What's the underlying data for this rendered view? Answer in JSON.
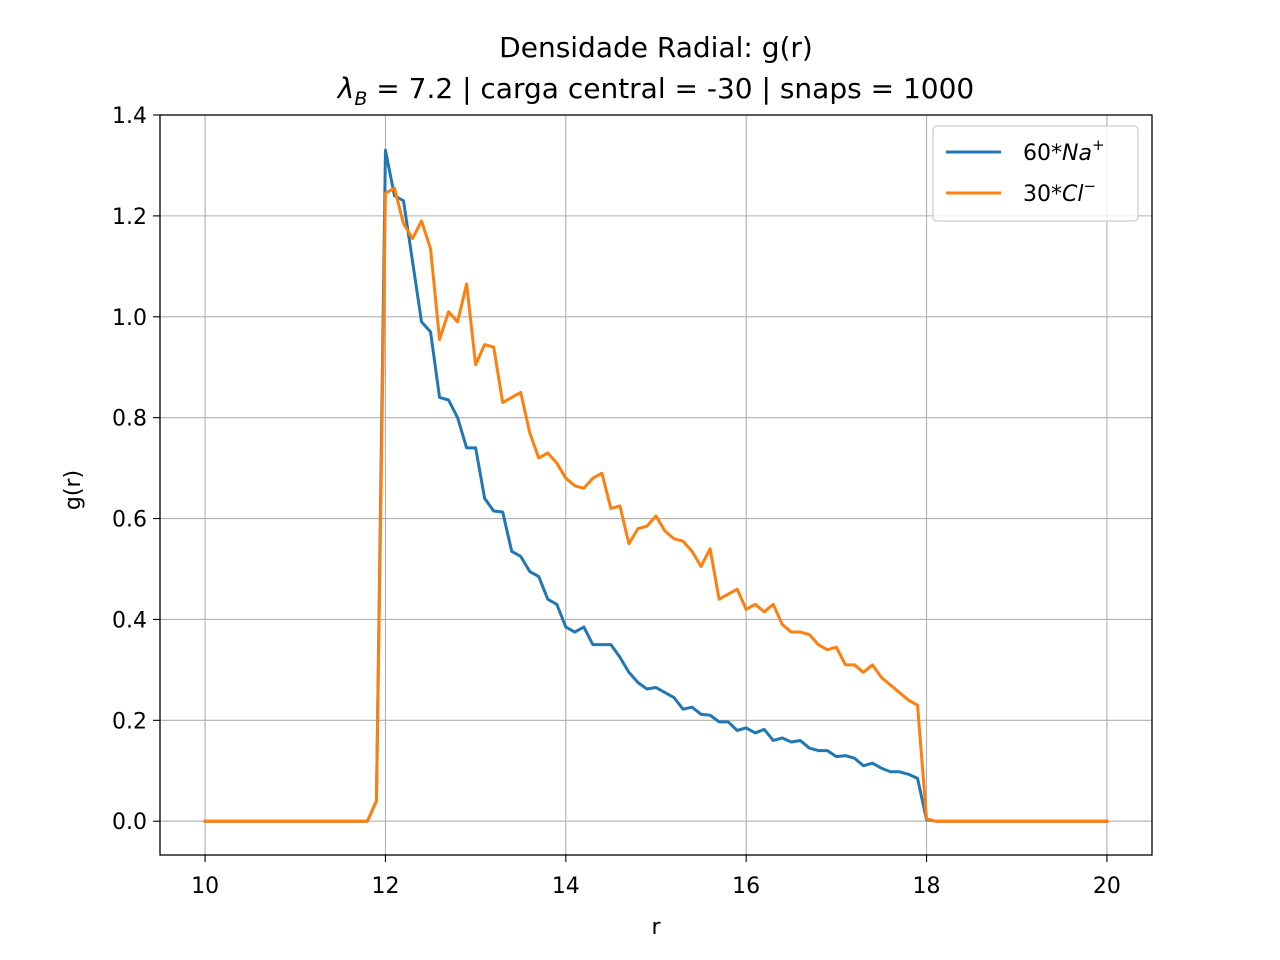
{
  "chart_data": {
    "type": "line",
    "title": "Densidade Radial: g(r)",
    "subtitle": {
      "lambda_symbol": "λ",
      "lambda_sub": "B",
      "lambda_rest": " = 7.2 | carga central = -30 | snaps = 1000"
    },
    "xlabel": "r",
    "ylabel": "g(r)",
    "xlim": [
      9.5,
      20.5
    ],
    "ylim": [
      -0.067,
      1.4
    ],
    "xticks": [
      10,
      12,
      14,
      16,
      18,
      20
    ],
    "xtick_labels": [
      "10",
      "12",
      "14",
      "16",
      "18",
      "20"
    ],
    "yticks": [
      0.0,
      0.2,
      0.4,
      0.6,
      0.8,
      1.0,
      1.2,
      1.4
    ],
    "ytick_labels": [
      "0.0",
      "0.2",
      "0.4",
      "0.6",
      "0.8",
      "1.0",
      "1.2",
      "1.4"
    ],
    "grid": true,
    "legend_position": "top-right",
    "series": [
      {
        "name": "60*Na+",
        "legend_prefix": "60*",
        "legend_ion": "Na",
        "legend_sup": "+",
        "color": "#1f77b4",
        "x": [
          10.0,
          11.8,
          11.9,
          12.0,
          12.1,
          12.2,
          12.3,
          12.4,
          12.5,
          12.6,
          12.7,
          12.8,
          12.9,
          13.0,
          13.1,
          13.2,
          13.3,
          13.4,
          13.5,
          13.6,
          13.7,
          13.8,
          13.9,
          14.0,
          14.1,
          14.2,
          14.3,
          14.4,
          14.5,
          14.6,
          14.7,
          14.8,
          14.9,
          15.0,
          15.1,
          15.2,
          15.3,
          15.4,
          15.5,
          15.6,
          15.7,
          15.8,
          15.9,
          16.0,
          16.1,
          16.2,
          16.3,
          16.4,
          16.5,
          16.6,
          16.7,
          16.8,
          16.9,
          17.0,
          17.1,
          17.2,
          17.3,
          17.4,
          17.5,
          17.6,
          17.7,
          17.8,
          17.9,
          18.0,
          18.1,
          18.2,
          20.0
        ],
        "values": [
          0.0,
          0.0,
          0.04,
          1.33,
          1.24,
          1.23,
          1.11,
          0.99,
          0.97,
          0.84,
          0.835,
          0.8,
          0.74,
          0.74,
          0.64,
          0.615,
          0.613,
          0.535,
          0.525,
          0.495,
          0.485,
          0.44,
          0.43,
          0.385,
          0.375,
          0.385,
          0.35,
          0.35,
          0.35,
          0.325,
          0.295,
          0.275,
          0.262,
          0.265,
          0.255,
          0.245,
          0.222,
          0.226,
          0.212,
          0.21,
          0.197,
          0.197,
          0.18,
          0.185,
          0.175,
          0.182,
          0.16,
          0.165,
          0.157,
          0.16,
          0.145,
          0.14,
          0.14,
          0.128,
          0.13,
          0.125,
          0.11,
          0.115,
          0.105,
          0.098,
          0.098,
          0.093,
          0.085,
          0.003,
          0.0,
          0.0,
          0.0
        ]
      },
      {
        "name": "30*Cl-",
        "legend_prefix": "30*",
        "legend_ion": "Cl",
        "legend_sup": "−",
        "color": "#ff7f0e",
        "x": [
          10.0,
          11.8,
          11.9,
          12.0,
          12.05,
          12.1,
          12.2,
          12.3,
          12.4,
          12.5,
          12.6,
          12.7,
          12.8,
          12.9,
          13.0,
          13.1,
          13.2,
          13.3,
          13.4,
          13.5,
          13.6,
          13.7,
          13.8,
          13.9,
          14.0,
          14.1,
          14.2,
          14.3,
          14.4,
          14.5,
          14.6,
          14.7,
          14.8,
          14.9,
          15.0,
          15.1,
          15.2,
          15.3,
          15.4,
          15.5,
          15.6,
          15.7,
          15.8,
          15.9,
          16.0,
          16.1,
          16.2,
          16.3,
          16.4,
          16.5,
          16.6,
          16.7,
          16.8,
          16.9,
          17.0,
          17.1,
          17.2,
          17.3,
          17.4,
          17.5,
          17.6,
          17.7,
          17.8,
          17.9,
          18.0,
          18.1,
          18.2,
          20.0
        ],
        "values": [
          0.0,
          0.0,
          0.04,
          1.245,
          1.25,
          1.255,
          1.185,
          1.155,
          1.19,
          1.135,
          0.955,
          1.01,
          0.99,
          1.065,
          0.905,
          0.945,
          0.94,
          0.83,
          0.84,
          0.85,
          0.77,
          0.72,
          0.73,
          0.71,
          0.68,
          0.665,
          0.66,
          0.68,
          0.69,
          0.62,
          0.625,
          0.55,
          0.58,
          0.585,
          0.605,
          0.575,
          0.56,
          0.555,
          0.535,
          0.505,
          0.54,
          0.44,
          0.45,
          0.46,
          0.42,
          0.43,
          0.415,
          0.43,
          0.39,
          0.375,
          0.375,
          0.37,
          0.35,
          0.34,
          0.345,
          0.31,
          0.31,
          0.295,
          0.31,
          0.285,
          0.27,
          0.255,
          0.24,
          0.23,
          0.005,
          0.0,
          0.0,
          0.0
        ]
      }
    ]
  }
}
